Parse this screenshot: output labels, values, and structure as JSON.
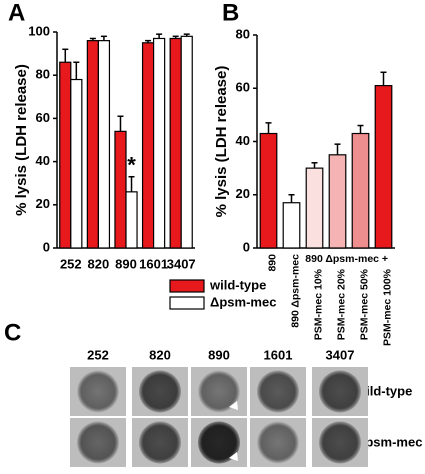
{
  "chart_data": [
    {
      "type": "bar",
      "panel_label": "A",
      "ylabel": "% lysis (LDH release)",
      "categories": [
        "252",
        "820",
        "890",
        "1601",
        "3407"
      ],
      "series": [
        {
          "name": "wild-type",
          "color": "#e8191c",
          "values": [
            86,
            96,
            54,
            95,
            97
          ],
          "errors": [
            6,
            1,
            7,
            1,
            1
          ]
        },
        {
          "name": "Δpsm-mec",
          "color": "#ffffff",
          "values": [
            78,
            96,
            26,
            97,
            98
          ],
          "errors": [
            8,
            2,
            7,
            2,
            1
          ]
        }
      ],
      "annotation": "*",
      "ylim": [
        0,
        100
      ],
      "yticks": [
        0,
        20,
        40,
        60,
        80,
        100
      ]
    },
    {
      "type": "bar",
      "panel_label": "B",
      "ylabel": "% lysis (LDH release)",
      "categories": [
        "890",
        "890 Δpsm-mec",
        "PSM-mec 10%",
        "PSM-mec 20%",
        "PSM-mec 50%",
        "PSM-mec 100%"
      ],
      "group_label": "890 Δpsm-mec +",
      "values": [
        43,
        17,
        30,
        35,
        43,
        61
      ],
      "errors": [
        4,
        3,
        2,
        4,
        3,
        5
      ],
      "colors": [
        "#e8191c",
        "#ffffff",
        "#fbe0e0",
        "#f6b3b3",
        "#ef8e8e",
        "#e8191c"
      ],
      "ylim": [
        0,
        80
      ],
      "yticks": [
        0,
        20,
        40,
        60,
        80
      ]
    }
  ],
  "panel_c": {
    "label": "C",
    "columns": [
      "252",
      "820",
      "890",
      "1601",
      "3407"
    ],
    "rows": [
      "wild-type",
      "Δpsm-mec"
    ]
  }
}
